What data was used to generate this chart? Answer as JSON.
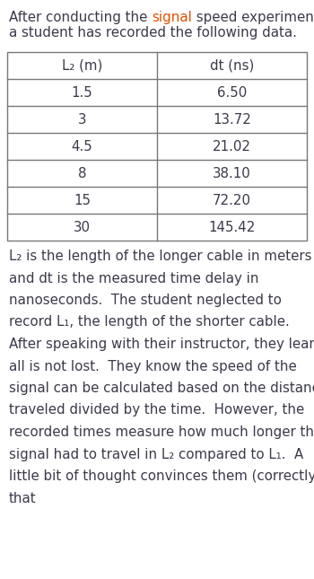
{
  "title_pre": "After conducting the ",
  "title_signal": "signal",
  "title_post": " speed experiment",
  "title_line2": "a student has recorded the following data.",
  "col1_header": "L₂ (m)",
  "col2_header": "dt (ns)",
  "col1_values": [
    "1.5",
    "3",
    "4.5",
    "8",
    "15",
    "30"
  ],
  "col2_values": [
    "6.50",
    "13.72",
    "21.02",
    "38.10",
    "72.20",
    "145.42"
  ],
  "body_lines": [
    "L₂ is the length of the longer cable in meters",
    "and dt is the measured time delay in",
    "nanoseconds.  The student neglected to",
    "record L₁, the length of the shorter cable.",
    "After speaking with their instructor, they learn",
    "all is not lost.  They know the speed of the",
    "signal can be calculated based on the distance",
    "traveled divided by the time.  However, the",
    "recorded times measure how much longer the",
    "signal had to travel in L₂ compared to L₁.  A",
    "little bit of thought convinces them (correctly)",
    "that"
  ],
  "bg_color": "#ffffff",
  "text_color": "#3a3a4a",
  "signal_color": "#e05000",
  "table_border_color": "#777777",
  "font_size_title": 10.8,
  "font_size_table": 10.8,
  "font_size_body": 10.8,
  "fig_width": 3.5,
  "fig_height": 6.45,
  "dpi": 100
}
